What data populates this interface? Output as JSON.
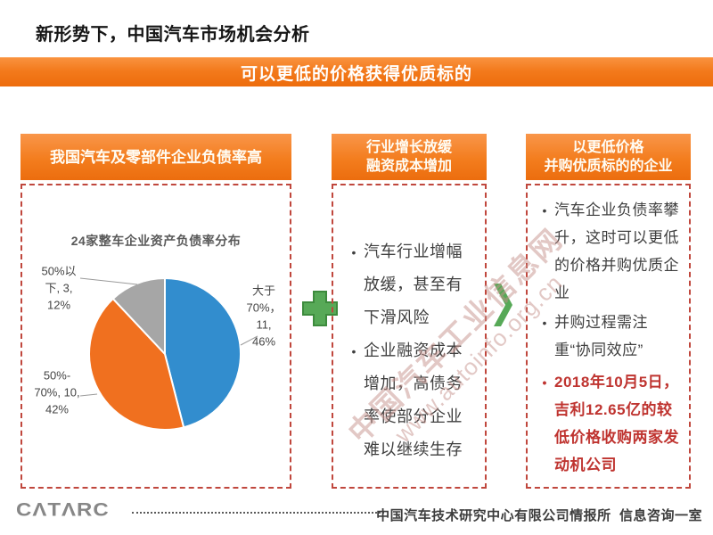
{
  "page": {
    "title": "新形势下，中国汽车市场机会分析",
    "banner": "可以更低的价格获得优质标的"
  },
  "columns": {
    "left": {
      "header": "我国汽车及零部件企业负债率高"
    },
    "middle": {
      "header_line1": "行业增长放缓",
      "header_line2": "融资成本增加",
      "bullets": [
        "汽车行业增幅放缓，甚至有下滑风险",
        "企业融资成本增加，高债务率使部分企业难以继续生存"
      ]
    },
    "right": {
      "header_line1": "以更低价格",
      "header_line2": "并购优质标的的企业",
      "bullets": [
        "汽车企业负债率攀升，这时可以更低的价格并购优质企业",
        "并购过程需注重“协同效应”"
      ],
      "highlight_bullet": "2018年10月5日，吉利12.65亿的较低价格收购两家发动机公司"
    }
  },
  "chart_data": {
    "type": "pie",
    "title": "24家整车企业资产负债率分布",
    "start_angle_deg": -90,
    "direction": "clockwise",
    "slices": [
      {
        "label": "大于70%",
        "count": 11,
        "value": 46,
        "color": "#328dce",
        "data_label": "大于\n70%，11,\n46%"
      },
      {
        "label": "50%-70%",
        "count": 10,
        "value": 42,
        "color": "#f0701f",
        "data_label": "50%-\n70%, 10,\n42%"
      },
      {
        "label": "50%以下",
        "count": 3,
        "value": 12,
        "color": "#a6a6a6",
        "data_label": "50%以\n下, 3,\n12%"
      }
    ]
  },
  "watermark": {
    "line1": "中国汽车工业信息网",
    "line2": "www.autoinfo.org.cn"
  },
  "footer": {
    "logo": "CΛTΛRC",
    "org": "中国汽车技术研究中心有限公司情报所  信息咨询一室"
  },
  "colors": {
    "accent_orange": "#f37a1c",
    "dashed_border_red": "#c0473d",
    "highlight_red": "#bf3430",
    "connector_green": "#57a957",
    "body_text": "#3f3f3f"
  }
}
